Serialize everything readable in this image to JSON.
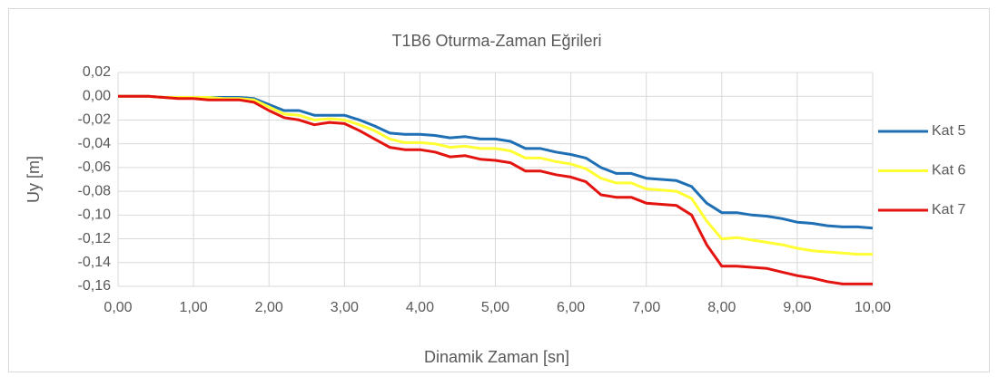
{
  "chart_data": {
    "type": "line",
    "title": "T1B6 Oturma-Zaman Eğrileri",
    "x_label": "Dinamik Zaman [sn]",
    "y_label": "Uy [m]",
    "x": [
      0,
      0.2,
      0.4,
      0.6,
      0.8,
      1,
      1.2,
      1.4,
      1.6,
      1.8,
      2,
      2.2,
      2.4,
      2.6,
      2.8,
      3,
      3.2,
      3.4,
      3.6,
      3.8,
      4,
      4.2,
      4.4,
      4.6,
      4.8,
      5,
      5.2,
      5.4,
      5.6,
      5.8,
      6,
      6.2,
      6.4,
      6.6,
      6.8,
      7,
      7.2,
      7.4,
      7.6,
      7.8,
      8,
      8.2,
      8.4,
      8.6,
      8.8,
      9,
      9.2,
      9.4,
      9.6,
      9.8,
      10
    ],
    "series": [
      {
        "name": "Kat 5",
        "color": "#1f6fb4",
        "values": [
          0,
          0,
          0,
          -0.001,
          -0.001,
          -0.001,
          -0.001,
          -0.001,
          -0.001,
          -0.002,
          -0.007,
          -0.012,
          -0.012,
          -0.016,
          -0.016,
          -0.016,
          -0.02,
          -0.025,
          -0.031,
          -0.032,
          -0.032,
          -0.033,
          -0.035,
          -0.034,
          -0.036,
          -0.036,
          -0.038,
          -0.044,
          -0.044,
          -0.047,
          -0.049,
          -0.052,
          -0.06,
          -0.065,
          -0.065,
          -0.069,
          -0.07,
          -0.071,
          -0.076,
          -0.09,
          -0.098,
          -0.098,
          -0.1,
          -0.101,
          -0.103,
          -0.106,
          -0.107,
          -0.109,
          -0.11,
          -0.11,
          -0.111
        ]
      },
      {
        "name": "Kat 6",
        "color": "#ffff33",
        "values": [
          0,
          0,
          0,
          -0.001,
          -0.001,
          -0.001,
          -0.001,
          -0.002,
          -0.002,
          -0.003,
          -0.009,
          -0.015,
          -0.016,
          -0.02,
          -0.019,
          -0.02,
          -0.024,
          -0.029,
          -0.036,
          -0.039,
          -0.039,
          -0.04,
          -0.043,
          -0.042,
          -0.044,
          -0.044,
          -0.046,
          -0.052,
          -0.052,
          -0.055,
          -0.057,
          -0.061,
          -0.069,
          -0.073,
          -0.073,
          -0.078,
          -0.079,
          -0.08,
          -0.086,
          -0.105,
          -0.12,
          -0.119,
          -0.121,
          -0.123,
          -0.125,
          -0.128,
          -0.13,
          -0.131,
          -0.132,
          -0.133,
          -0.133
        ]
      },
      {
        "name": "Kat 7",
        "color": "#e3140f",
        "values": [
          0,
          0,
          0,
          -0.001,
          -0.002,
          -0.002,
          -0.003,
          -0.003,
          -0.003,
          -0.005,
          -0.012,
          -0.018,
          -0.02,
          -0.024,
          -0.022,
          -0.023,
          -0.029,
          -0.036,
          -0.043,
          -0.045,
          -0.045,
          -0.047,
          -0.051,
          -0.05,
          -0.053,
          -0.054,
          -0.056,
          -0.063,
          -0.063,
          -0.066,
          -0.068,
          -0.072,
          -0.083,
          -0.085,
          -0.085,
          -0.09,
          -0.091,
          -0.092,
          -0.1,
          -0.125,
          -0.143,
          -0.143,
          -0.144,
          -0.145,
          -0.148,
          -0.151,
          -0.153,
          -0.156,
          -0.158,
          -0.158,
          -0.158
        ]
      }
    ],
    "xlim": [
      0,
      10
    ],
    "xticks": [
      {
        "value": 0,
        "label": "0,00"
      },
      {
        "value": 1,
        "label": "1,00"
      },
      {
        "value": 2,
        "label": "2,00"
      },
      {
        "value": 3,
        "label": "3,00"
      },
      {
        "value": 4,
        "label": "4,00"
      },
      {
        "value": 5,
        "label": "5,00"
      },
      {
        "value": 6,
        "label": "6,00"
      },
      {
        "value": 7,
        "label": "7,00"
      },
      {
        "value": 8,
        "label": "8,00"
      },
      {
        "value": 9,
        "label": "9,00"
      },
      {
        "value": 10,
        "label": "10,00"
      }
    ],
    "ylim": [
      -0.16,
      0.02
    ],
    "yticks": [
      {
        "value": 0.02,
        "label": "0,02"
      },
      {
        "value": 0,
        "label": "0,00"
      },
      {
        "value": -0.02,
        "label": "-0,02"
      },
      {
        "value": -0.04,
        "label": "-0,04"
      },
      {
        "value": -0.06,
        "label": "-0,06"
      },
      {
        "value": -0.08,
        "label": "-0,08"
      },
      {
        "value": -0.1,
        "label": "-0,10"
      },
      {
        "value": -0.12,
        "label": "-0,12"
      },
      {
        "value": -0.14,
        "label": "-0,14"
      },
      {
        "value": -0.16,
        "label": "-0,16"
      }
    ],
    "grid": true,
    "legend": "right"
  }
}
